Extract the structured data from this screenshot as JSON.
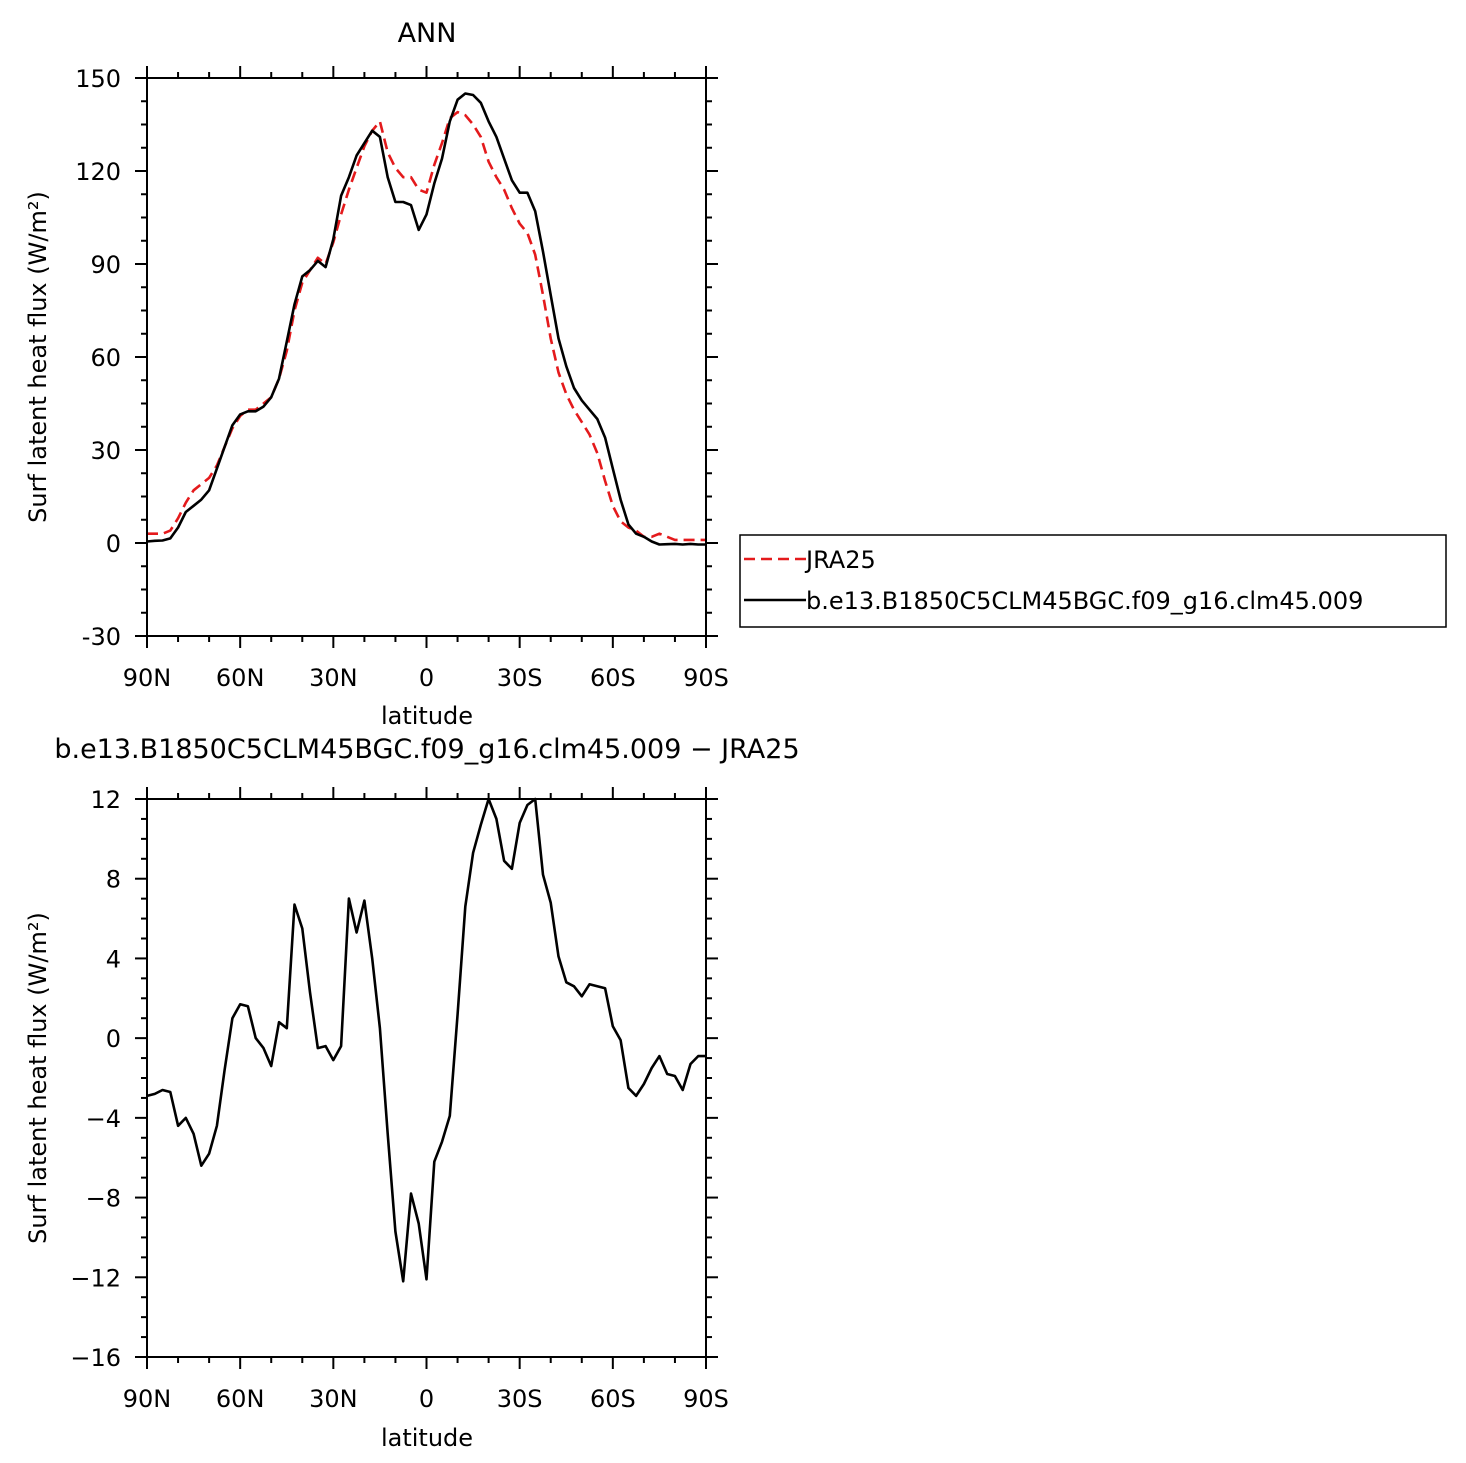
{
  "chart_data": [
    {
      "type": "line",
      "title": "ANN",
      "xlabel": "latitude",
      "ylabel": "Surf latent heat flux (W/m²)",
      "xlim": [
        90,
        -90
      ],
      "ylim": [
        -30,
        150
      ],
      "x_ticks": [
        90,
        60,
        30,
        0,
        -30,
        -60,
        -90
      ],
      "x_tick_labels": [
        "90N",
        "60N",
        "30N",
        "0",
        "30S",
        "60S",
        "90S"
      ],
      "y_ticks": [
        -30,
        0,
        30,
        60,
        90,
        120,
        150
      ],
      "y_tick_labels": [
        "-30",
        "0",
        "30",
        "60",
        "90",
        "120",
        "150"
      ],
      "grid": false,
      "legend_position": "right",
      "series": [
        {
          "name": "JRA25",
          "color": "#e41a1c",
          "dash": "dashed",
          "x": [
            90,
            87.5,
            85,
            82.5,
            80,
            77.5,
            75,
            72.5,
            70,
            67.5,
            65,
            62.5,
            60,
            57.5,
            55,
            52.5,
            50,
            47.5,
            45,
            42.5,
            40,
            37.5,
            35,
            32.5,
            30,
            27.5,
            25,
            22.5,
            20,
            17.5,
            15,
            12.5,
            10,
            7.5,
            5,
            2.5,
            0,
            -2.5,
            -5,
            -7.5,
            -10,
            -12.5,
            -15,
            -17.5,
            -20,
            -22.5,
            -25,
            -27.5,
            -30,
            -32.5,
            -35,
            -37.5,
            -40,
            -42.5,
            -45,
            -47.5,
            -50,
            -52.5,
            -55,
            -57.5,
            -60,
            -62.5,
            -65,
            -67.5,
            -70,
            -72.5,
            -75,
            -77.5,
            -80,
            -82.5,
            -85,
            -87.5,
            -90
          ],
          "y": [
            3,
            3,
            3,
            4,
            8,
            13,
            17,
            19,
            21,
            25,
            31,
            37,
            41,
            43,
            43,
            45,
            47,
            53,
            62,
            75,
            84,
            88,
            92,
            90,
            97,
            106,
            114,
            121,
            128,
            133,
            136,
            126,
            121,
            118,
            118,
            114,
            113,
            122,
            129,
            137,
            139,
            138,
            135,
            131,
            123,
            118,
            114,
            108,
            103,
            100,
            93,
            80,
            66,
            55,
            48,
            43,
            39,
            35,
            29,
            20,
            12,
            7,
            5,
            4,
            2,
            2,
            3,
            2,
            1,
            1,
            1,
            1,
            1
          ]
        },
        {
          "name": "b.e13.B1850C5CLM45BGC.f09_g16.clm45.009",
          "color": "#000000",
          "dash": "solid",
          "x": [
            90,
            87.5,
            85,
            82.5,
            80,
            77.5,
            75,
            72.5,
            70,
            67.5,
            65,
            62.5,
            60,
            57.5,
            55,
            52.5,
            50,
            47.5,
            45,
            42.5,
            40,
            37.5,
            35,
            32.5,
            30,
            27.5,
            25,
            22.5,
            20,
            17.5,
            15,
            12.5,
            10,
            7.5,
            5,
            2.5,
            0,
            -2.5,
            -5,
            -7.5,
            -10,
            -12.5,
            -15,
            -17.5,
            -20,
            -22.5,
            -25,
            -27.5,
            -30,
            -32.5,
            -35,
            -37.5,
            -40,
            -42.5,
            -45,
            -47.5,
            -50,
            -52.5,
            -55,
            -57.5,
            -60,
            -62.5,
            -65,
            -67.5,
            -70,
            -72.5,
            -75,
            -77.5,
            -80,
            -82.5,
            -85,
            -87.5,
            -90
          ],
          "y": [
            0.5,
            0.7,
            0.8,
            1.5,
            5,
            10,
            12,
            14,
            17,
            24,
            31,
            38,
            41.5,
            42.5,
            42.5,
            44,
            47,
            53,
            65,
            77,
            86,
            88,
            91,
            89,
            98,
            112,
            118,
            125,
            129,
            133,
            131,
            118,
            110,
            110,
            109,
            101,
            106,
            116,
            124,
            136,
            143,
            145,
            144.5,
            142,
            136,
            131,
            124,
            117,
            113,
            113,
            107,
            94,
            80,
            66,
            57,
            50,
            46,
            43,
            40,
            34,
            24,
            14,
            6,
            3,
            2,
            0.5,
            -0.5,
            -0.4,
            -0.3,
            -0.5,
            -0.3,
            -0.5,
            -0.5
          ]
        }
      ]
    },
    {
      "type": "line",
      "title": "b.e13.B1850C5CLM45BGC.f09_g16.clm45.009 − JRA25",
      "xlabel": "latitude",
      "ylabel": "Surf latent heat flux (W/m²)",
      "xlim": [
        90,
        -90
      ],
      "ylim": [
        -16,
        12
      ],
      "x_ticks": [
        90,
        60,
        30,
        0,
        -30,
        -60,
        -90
      ],
      "x_tick_labels": [
        "90N",
        "60N",
        "30N",
        "0",
        "30S",
        "60S",
        "90S"
      ],
      "y_ticks": [
        -16,
        -12,
        -8,
        -4,
        0,
        4,
        8,
        12
      ],
      "y_tick_labels": [
        "−16",
        "−12",
        "−8",
        "−4",
        "0",
        "4",
        "8",
        "12"
      ],
      "grid": false,
      "series": [
        {
          "color": "#000000",
          "dash": "solid",
          "x": [
            90,
            87.5,
            85,
            82.5,
            80,
            77.5,
            75,
            72.5,
            70,
            67.5,
            65,
            62.5,
            60,
            57.5,
            55,
            52.5,
            50,
            47.5,
            45,
            42.5,
            40,
            37.5,
            35,
            32.5,
            30,
            27.5,
            25,
            22.5,
            20,
            17.5,
            15,
            12.5,
            10,
            7.5,
            5,
            2.5,
            0,
            -2.5,
            -5,
            -7.5,
            -10,
            -12.5,
            -15,
            -17.5,
            -20,
            -22.5,
            -25,
            -27.5,
            -30,
            -32.5,
            -35,
            -37.5,
            -40,
            -42.5,
            -45,
            -47.5,
            -50,
            -52.5,
            -55,
            -57.5,
            -60,
            -62.5,
            -65,
            -67.5,
            -70,
            -72.5,
            -75,
            -77.5,
            -80,
            -82.5,
            -85,
            -87.5,
            -90
          ],
          "y": [
            -2.9,
            -2.8,
            -2.6,
            -2.7,
            -4.4,
            -4.0,
            -4.8,
            -6.4,
            -5.8,
            -4.4,
            -1.6,
            1.0,
            1.7,
            1.6,
            0,
            -0.5,
            -1.4,
            0.8,
            0.5,
            6.7,
            5.5,
            2.3,
            -0.5,
            -0.4,
            -1.1,
            -0.4,
            7.0,
            5.3,
            6.9,
            4.0,
            0.5,
            -4.8,
            -9.7,
            -12.2,
            -7.8,
            -9.3,
            -12.1,
            -6.2,
            -5.2,
            -3.9,
            1.2,
            6.6,
            9.3,
            10.7,
            12.0,
            11.0,
            8.9,
            8.5,
            10.8,
            11.7,
            12.0,
            8.2,
            6.8,
            4.1,
            2.8,
            2.6,
            2.1,
            2.7,
            2.6,
            2.5,
            0.6,
            -0.1,
            -2.5,
            -2.9,
            -2.3,
            -1.5,
            -0.9,
            -1.8,
            -1.9,
            -2.6,
            -1.3,
            -0.9,
            -0.9
          ]
        }
      ]
    }
  ]
}
